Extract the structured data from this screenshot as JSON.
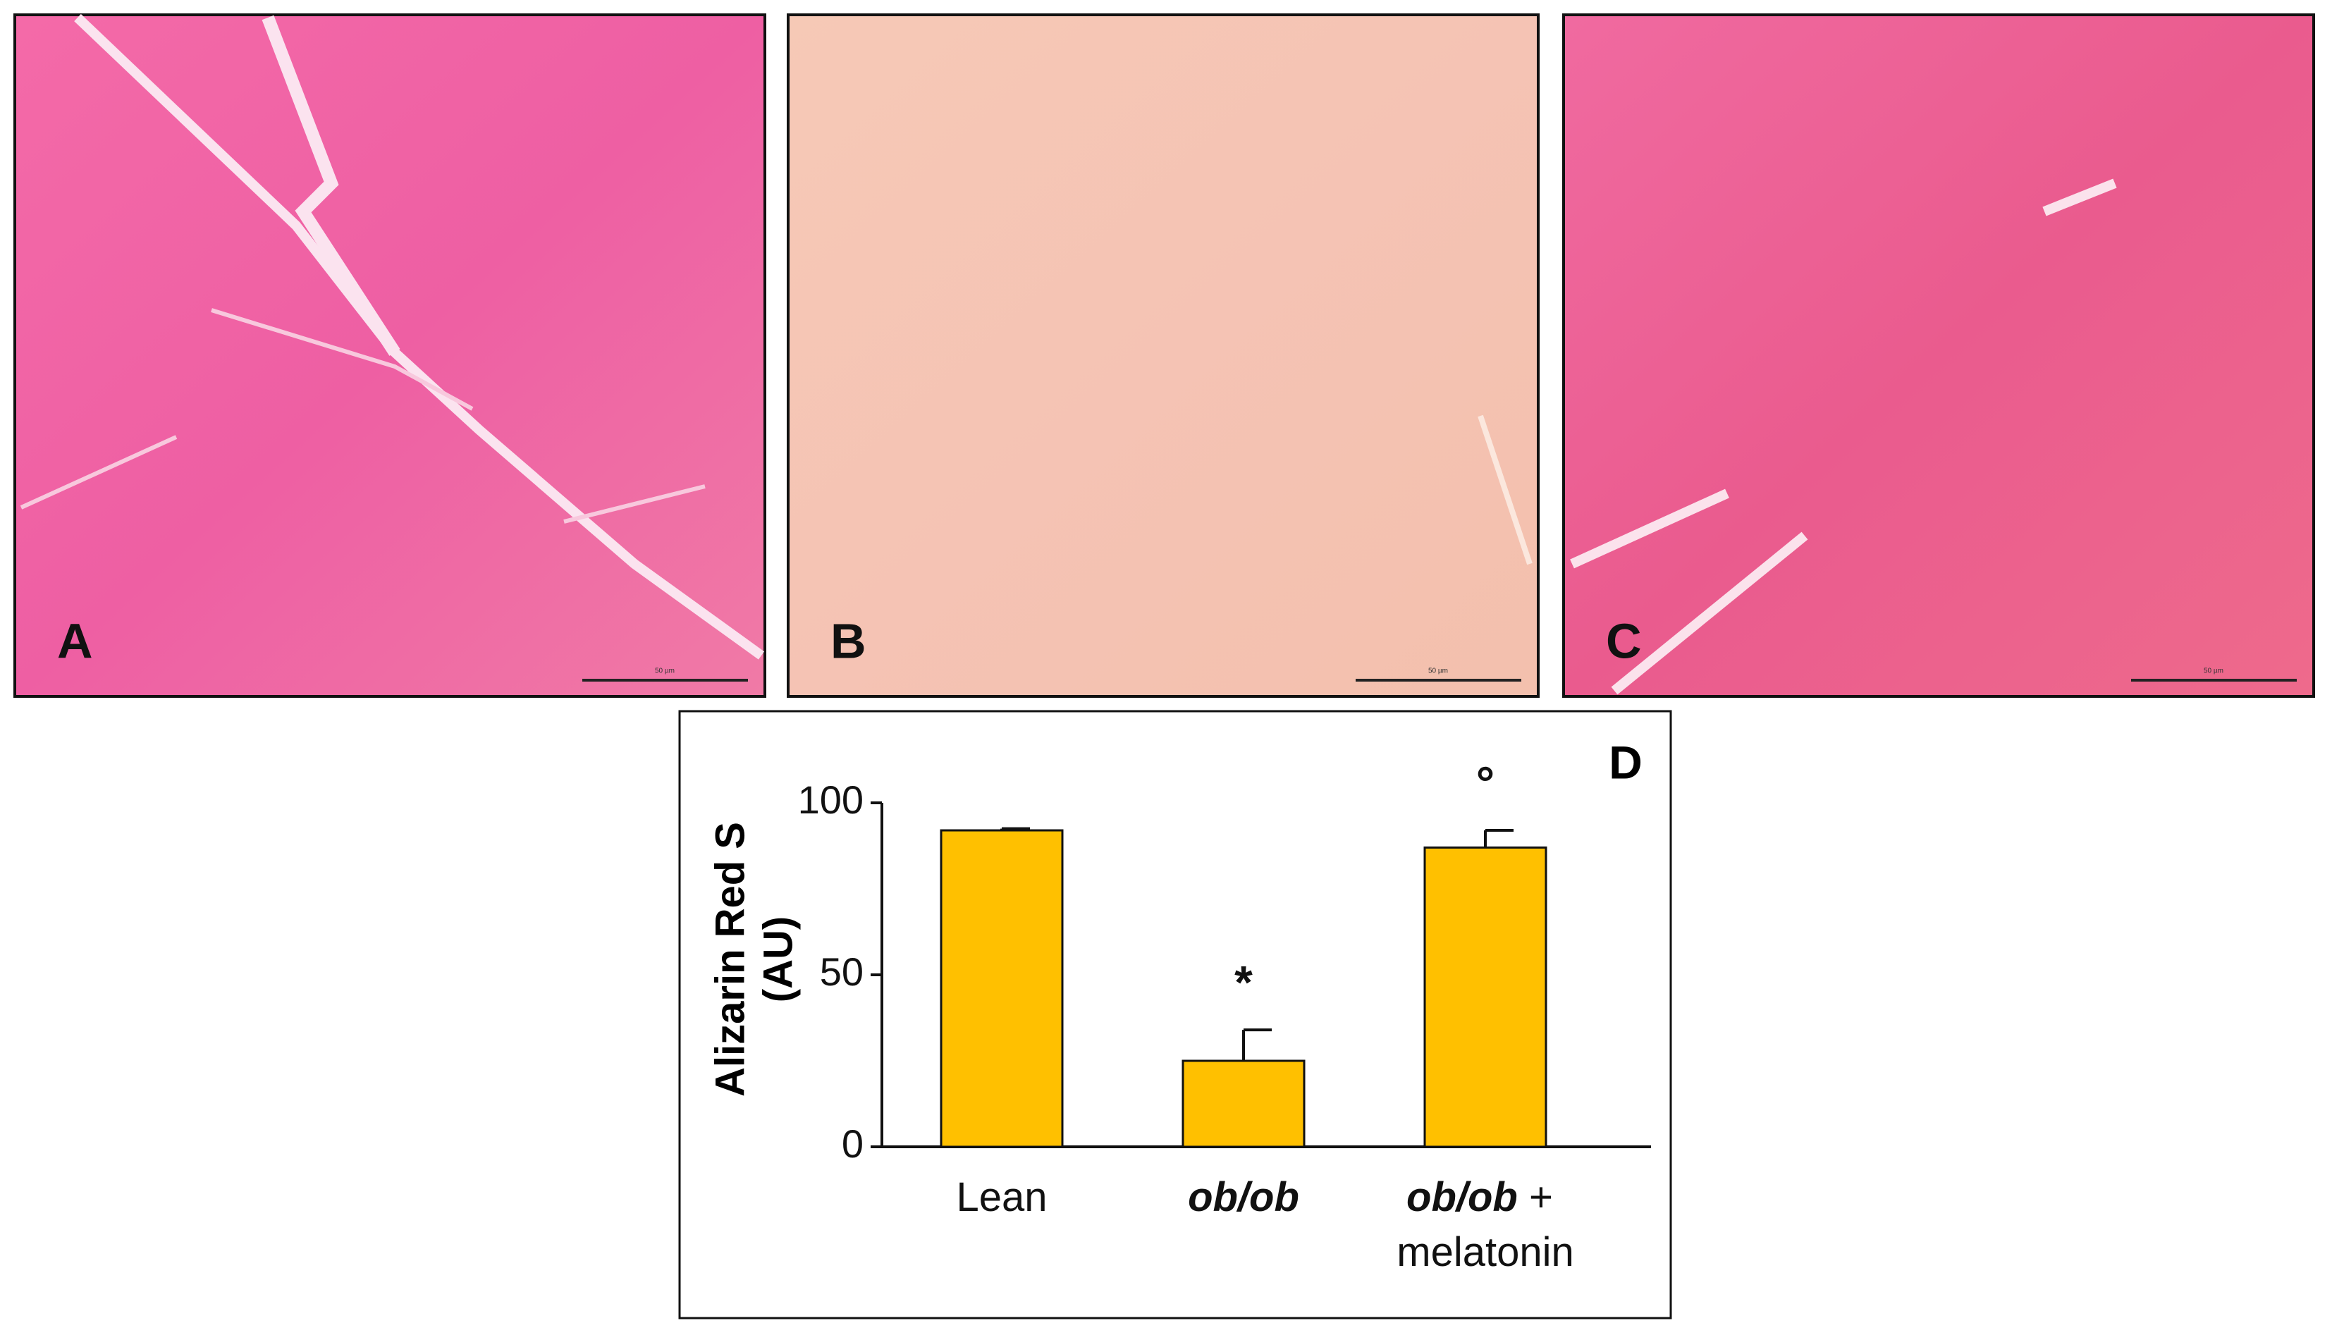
{
  "panels": [
    {
      "label": "A",
      "scale_bar": "50 µm"
    },
    {
      "label": "B",
      "scale_bar": "50 µm"
    },
    {
      "label": "C",
      "scale_bar": "50 µm"
    }
  ],
  "chart_data": {
    "type": "bar",
    "panel_label": "D",
    "y_label": [
      "Alizarin Red S",
      "(AU)"
    ],
    "categories": [
      "Lean",
      "ob/ob",
      "ob/ob + melatonin"
    ],
    "values": [
      92,
      25,
      87
    ],
    "errors": [
      0.5,
      9,
      5
    ],
    "annotations": [
      null,
      "*",
      "°"
    ],
    "color": "#ffc000",
    "ylim": [
      0,
      100
    ],
    "yticks": [
      0,
      50,
      100
    ],
    "grid": false
  }
}
